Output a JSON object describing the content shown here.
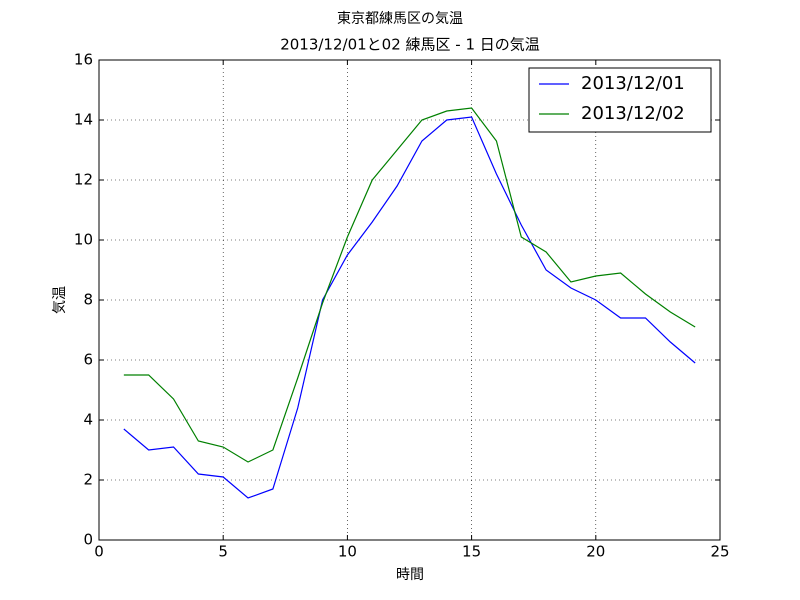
{
  "chart_data": {
    "type": "line",
    "title": "東京都練馬区の気温",
    "subtitle": "2013/12/01と02 練馬区 - 1 日の気温",
    "x_label": "時間",
    "y_label": "気温",
    "x": [
      1,
      2,
      3,
      4,
      5,
      6,
      7,
      8,
      9,
      10,
      11,
      12,
      13,
      14,
      15,
      16,
      17,
      18,
      19,
      20,
      21,
      22,
      23,
      24
    ],
    "series": [
      {
        "name": "2013/12/01",
        "color": "#0000ff",
        "values": [
          3.7,
          3.0,
          3.1,
          2.2,
          2.1,
          1.4,
          1.7,
          4.4,
          8.0,
          9.5,
          10.6,
          11.8,
          13.3,
          14.0,
          14.1,
          12.2,
          10.5,
          9.0,
          8.4,
          8.0,
          7.4,
          7.4,
          6.6,
          5.9
        ]
      },
      {
        "name": "2013/12/02",
        "color": "#008000",
        "values": [
          5.5,
          5.5,
          4.7,
          3.3,
          3.1,
          2.6,
          3.0,
          5.4,
          7.9,
          10.1,
          12.0,
          13.0,
          14.0,
          14.3,
          14.4,
          13.3,
          10.1,
          9.6,
          8.6,
          8.8,
          8.9,
          8.2,
          7.6,
          7.1
        ]
      }
    ],
    "xlim": [
      0,
      25
    ],
    "xticks": [
      0,
      5,
      10,
      15,
      20,
      25
    ],
    "ylim": [
      0,
      16
    ],
    "yticks": [
      0,
      2,
      4,
      6,
      8,
      10,
      12,
      14,
      16
    ],
    "grid": true,
    "legend": "upper-right"
  }
}
